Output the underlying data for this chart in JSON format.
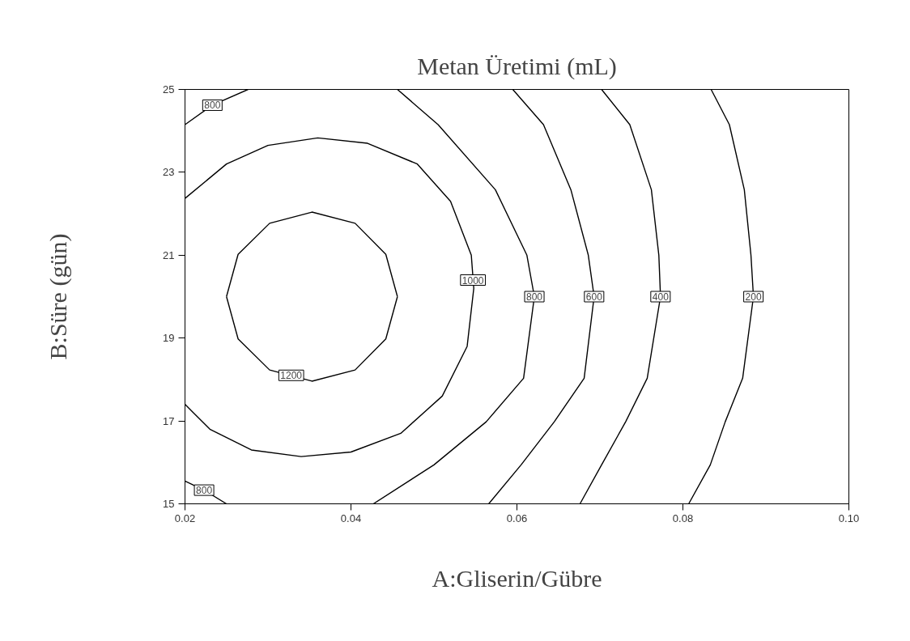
{
  "chart_data": {
    "type": "line",
    "title": "Metan Üretimi (mL)",
    "xlabel": "A:Gliserin/Gübre",
    "ylabel": "B:Süre (gün)",
    "xlim": [
      0.02,
      0.1
    ],
    "xticks": [
      0.02,
      0.04,
      0.06,
      0.08,
      {
        "value": 0.1,
        "label": "0.10"
      }
    ],
    "ylim": [
      15,
      25
    ],
    "yticks": [
      15,
      17,
      19,
      21,
      23,
      25
    ],
    "grid": false,
    "marker": "none",
    "line_style": "solid",
    "annotations": [
      {
        "text": "1200",
        "x": 0.0328,
        "y": 18.1
      },
      {
        "text": "1000",
        "x": 0.0547,
        "y": 20.4
      },
      {
        "text": "800",
        "x": 0.0621,
        "y": 20.0
      },
      {
        "text": "800",
        "x": 0.0233,
        "y": 24.62
      },
      {
        "text": "800",
        "x": 0.0223,
        "y": 15.33
      },
      {
        "text": "600",
        "x": 0.0693,
        "y": 20.0
      },
      {
        "text": "400",
        "x": 0.0773,
        "y": 20.0
      },
      {
        "text": "200",
        "x": 0.0885,
        "y": 20.0
      }
    ],
    "series": [
      {
        "color": "#000000",
        "x": [
          0.025,
          0.0264,
          0.0302,
          0.0353,
          0.0405,
          0.0442,
          0.0456
        ],
        "values": [
          20.0,
          21.02,
          21.77,
          22.04,
          21.77,
          21.02,
          20.0
        ]
      },
      {
        "color": "#000000",
        "x": [
          0.0456,
          0.0442,
          0.0405,
          0.0353,
          0.0302,
          0.0264,
          0.025
        ],
        "values": [
          20.0,
          18.98,
          18.23,
          17.96,
          18.23,
          18.98,
          20.0
        ]
      },
      {
        "color": "#000000",
        "x": [
          0.02,
          0.025,
          0.03,
          0.036,
          0.042,
          0.048,
          0.052,
          0.0545,
          0.0548,
          0.054,
          0.051,
          0.046,
          0.04,
          0.034,
          0.028,
          0.023,
          0.02
        ],
        "values": [
          22.37,
          23.2,
          23.65,
          23.83,
          23.7,
          23.2,
          22.3,
          21.0,
          20.2,
          18.8,
          17.6,
          16.7,
          16.25,
          16.14,
          16.3,
          16.8,
          17.4
        ]
      },
      {
        "color": "#000000",
        "x": [
          0.0456,
          0.0505,
          0.0574,
          0.0612,
          0.0621,
          0.0608,
          0.0563,
          0.05,
          0.0427
        ],
        "values": [
          25,
          24.15,
          22.58,
          21.0,
          20.0,
          18.03,
          16.98,
          15.94,
          15
        ]
      },
      {
        "color": "#000000",
        "x": [
          0.02,
          0.0233,
          0.0276
        ],
        "values": [
          24.15,
          24.62,
          25
        ]
      },
      {
        "color": "#000000",
        "x": [
          0.02,
          0.0223,
          0.025
        ],
        "values": [
          15.55,
          15.33,
          15
        ]
      },
      {
        "color": "#000000",
        "x": [
          0.0595,
          0.0632,
          0.0665,
          0.0686,
          0.0693,
          0.0681,
          0.0645,
          0.0605,
          0.0566
        ],
        "values": [
          25,
          24.15,
          22.58,
          21.0,
          20.0,
          18.03,
          16.98,
          15.94,
          15
        ]
      },
      {
        "color": "#000000",
        "x": [
          0.0702,
          0.0736,
          0.0762,
          0.0771,
          0.0773,
          0.0757,
          0.0731,
          0.0702,
          0.0676
        ],
        "values": [
          25,
          24.15,
          22.58,
          21.0,
          20.0,
          18.03,
          16.98,
          15.94,
          15
        ]
      },
      {
        "color": "#000000",
        "x": [
          0.0834,
          0.0856,
          0.0874,
          0.0882,
          0.0885,
          0.0872,
          0.0851,
          0.0833,
          0.0807
        ],
        "values": [
          25,
          24.15,
          22.58,
          21.0,
          20.0,
          18.03,
          16.98,
          15.94,
          15
        ]
      }
    ]
  }
}
